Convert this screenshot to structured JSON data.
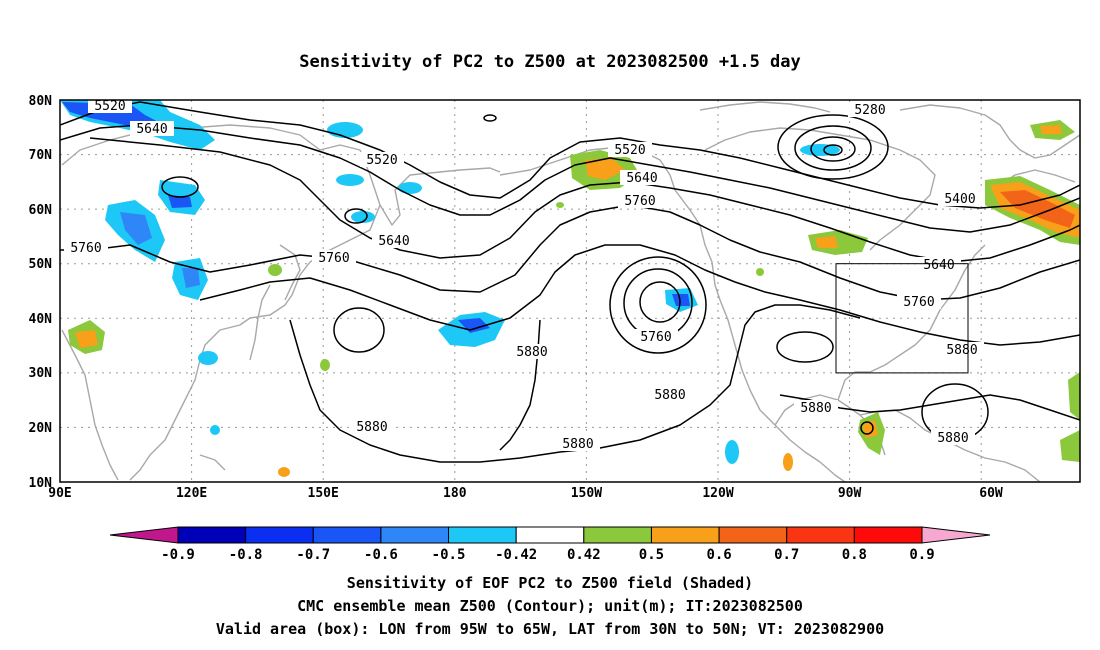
{
  "title": "Sensitivity of PC2 to Z500 at 2023082500 +1.5 day",
  "map": {
    "lat_ticks": [
      "80N",
      "70N",
      "60N",
      "50N",
      "40N",
      "30N",
      "20N",
      "10N"
    ],
    "lon_ticks": [
      "90E",
      "120E",
      "150E",
      "180",
      "150W",
      "120W",
      "90W",
      "60W"
    ],
    "extent": {
      "lon_min": 90,
      "lon_max": 322.5,
      "lat_min": 10,
      "lat_max": 80
    },
    "contour_labels": [
      "5520",
      "5640",
      "5520",
      "5760",
      "5640",
      "5760",
      "5520",
      "5640",
      "5760",
      "5760",
      "5280",
      "5400",
      "5640",
      "5760",
      "5880",
      "5880",
      "5880",
      "5880",
      "5880",
      "5880",
      "5880"
    ],
    "valid_box": {
      "lon_west": 265,
      "lon_east": 295,
      "lat_south": 30,
      "lat_north": 50
    }
  },
  "colorbar": {
    "labels": [
      "-0.9",
      "-0.8",
      "-0.7",
      "-0.6",
      "-0.5",
      "-0.42",
      "0.42",
      "0.5",
      "0.6",
      "0.7",
      "0.8",
      "0.9"
    ],
    "colors": [
      "#0000b8",
      "#0a2ff0",
      "#1a55f5",
      "#2f86f7",
      "#1ec8f6",
      "#ffffff",
      "#8bc83c",
      "#f8a01a",
      "#f26418",
      "#fa3514",
      "#ff0a0a"
    ],
    "low_end_color": "#c0188c",
    "high_end_color": "#f7a8d0"
  },
  "captions": {
    "line1": "Sensitivity of EOF PC2 to Z500 field (Shaded)",
    "line2": "CMC ensemble mean Z500 (Contour); unit(m); IT:2023082500",
    "line3": "Valid area (box): LON from 95W to 65W, LAT from 30N to 50N; VT: 2023082900"
  },
  "colors": {
    "coast": "#a8a8a8",
    "negative_shade": "#1ec8f6",
    "positive_shade": "#8bc83c"
  }
}
